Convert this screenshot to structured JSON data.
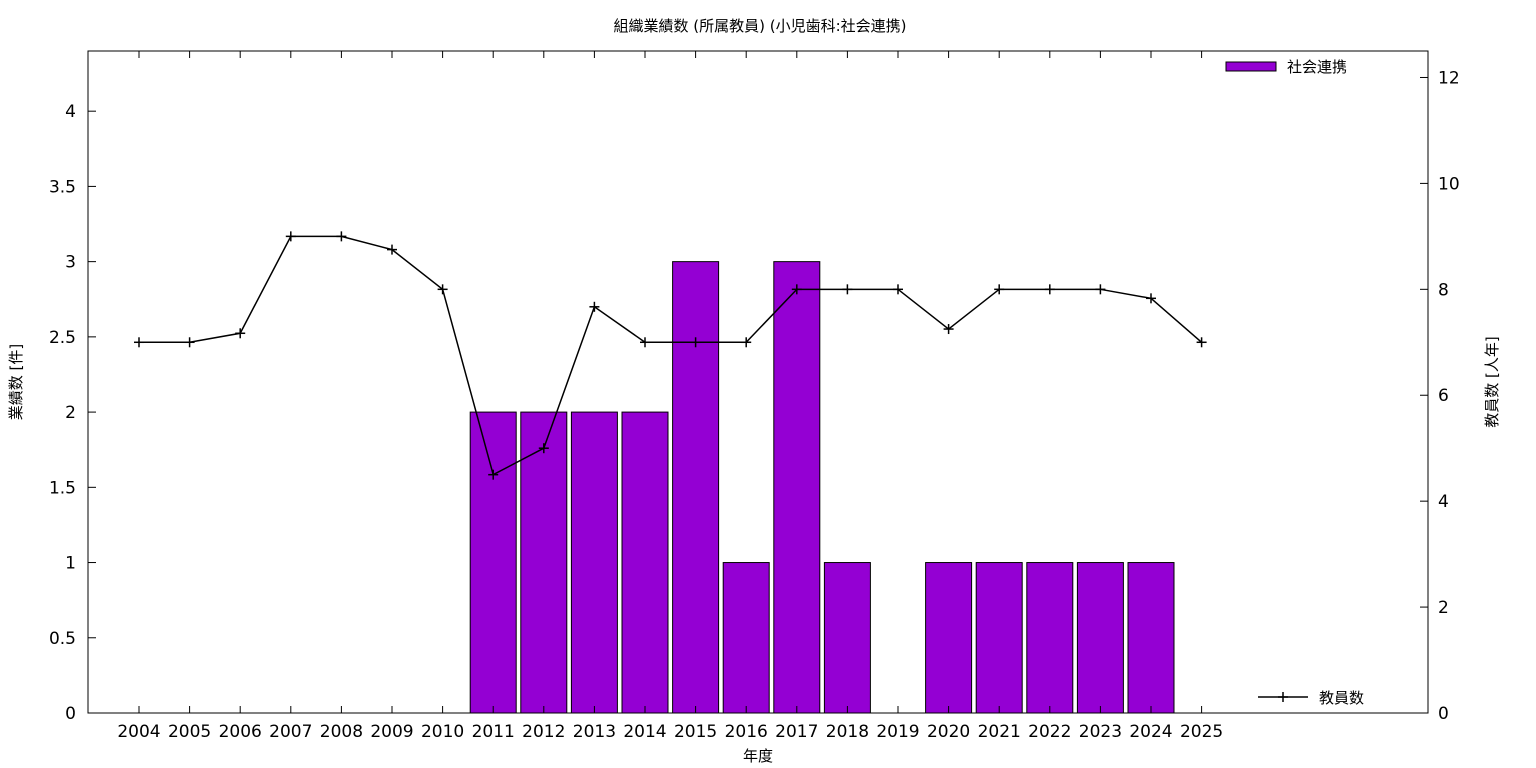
{
  "chart_data": {
    "type": "bar",
    "title": "組織業績数 (所属教員) (小児歯科:社会連携)",
    "xlabel": "年度",
    "ylabel": "業績数 [件]",
    "y2label": "教員数 [人年]",
    "categories": [
      "2004",
      "2005",
      "2006",
      "2007",
      "2008",
      "2009",
      "2010",
      "2011",
      "2012",
      "2013",
      "2014",
      "2015",
      "2016",
      "2017",
      "2018",
      "2019",
      "2020",
      "2021",
      "2022",
      "2023",
      "2024",
      "2025"
    ],
    "ylim": [
      0,
      4.4
    ],
    "y2lim": [
      0,
      12.5
    ],
    "yticks": [
      "0",
      "0.5",
      "1",
      "1.5",
      "2",
      "2.5",
      "3",
      "3.5",
      "4"
    ],
    "y2ticks": [
      "0",
      "2",
      "4",
      "6",
      "8",
      "10",
      "12"
    ],
    "legend_position": "top-right",
    "grid": false,
    "series": [
      {
        "name": "社会連携",
        "type": "bar",
        "axis": "left",
        "color": "#9400d3",
        "values": [
          0,
          0,
          0,
          0,
          0,
          0,
          0,
          2,
          2,
          2,
          2,
          3,
          1,
          3,
          1,
          0,
          1,
          1,
          1,
          1,
          1,
          0
        ]
      },
      {
        "name": "教員数",
        "type": "line",
        "axis": "right",
        "color": "#000000",
        "values": [
          7,
          7,
          7.17,
          9,
          9,
          8.75,
          8,
          4.5,
          5,
          7.67,
          7,
          7,
          7,
          8,
          8,
          8,
          7.25,
          8,
          8,
          8,
          7.83,
          7
        ]
      }
    ]
  }
}
